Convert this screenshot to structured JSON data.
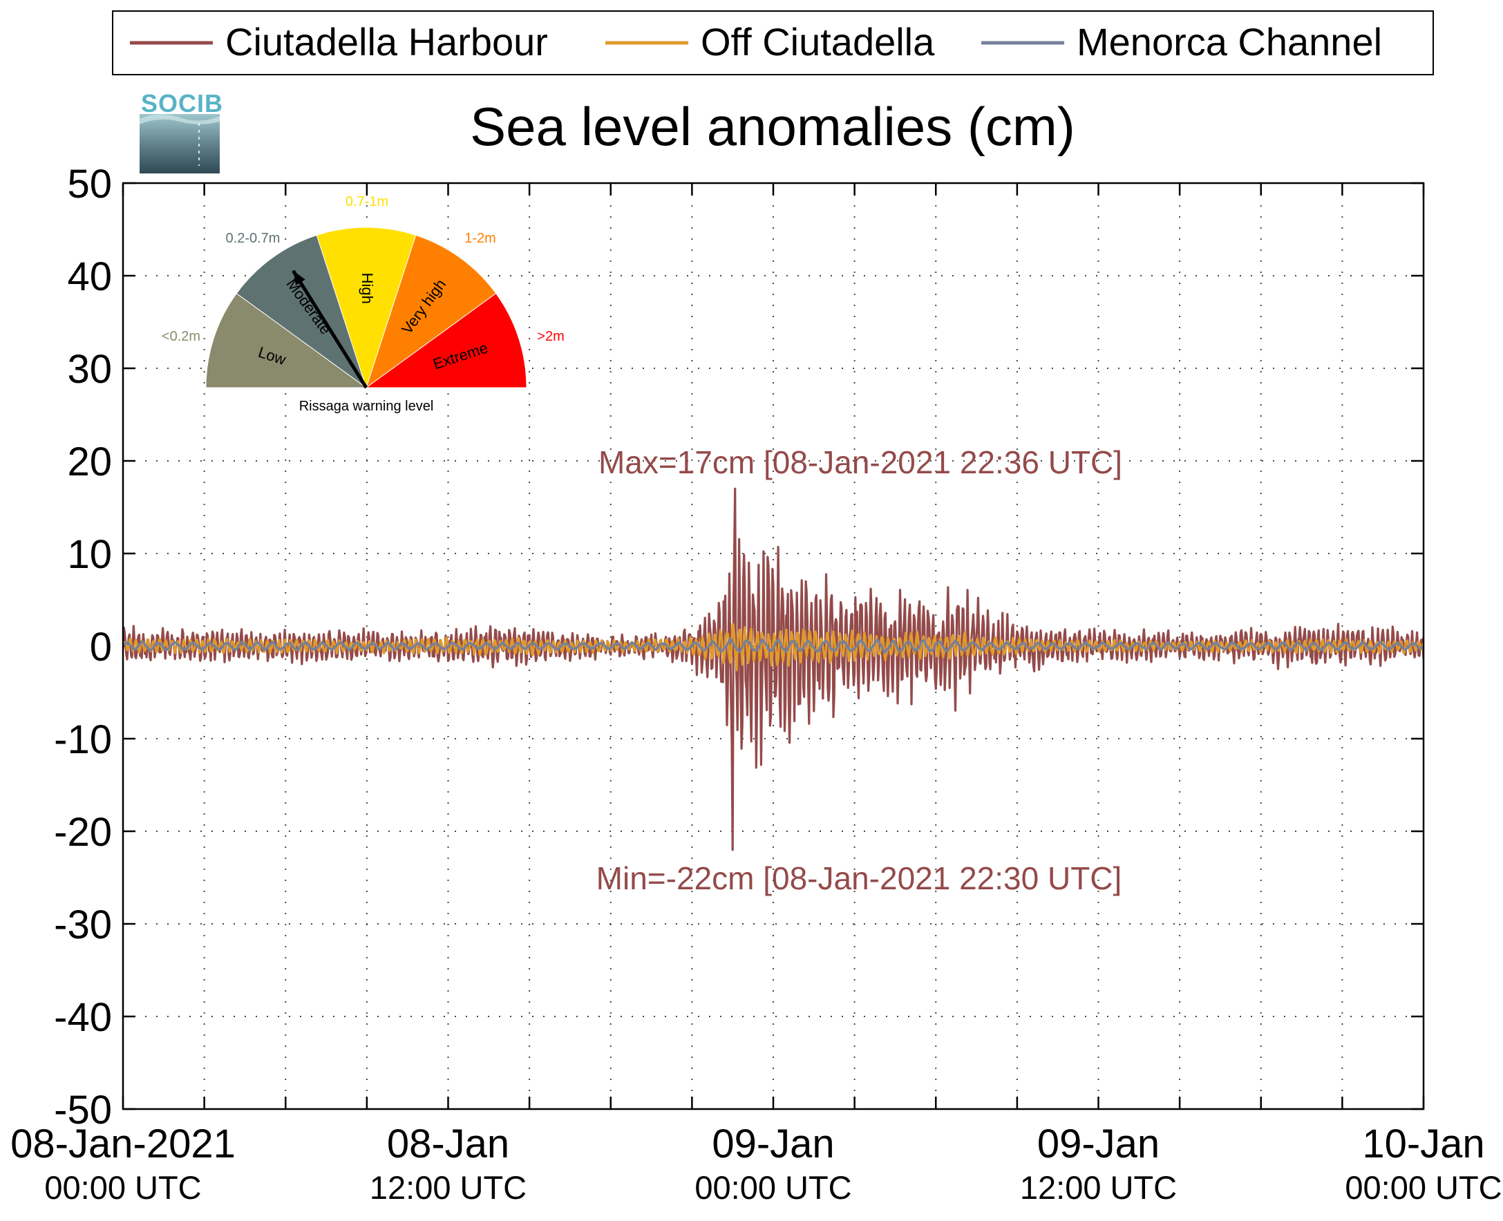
{
  "logo": {
    "text": "SOCIB"
  },
  "chart_data": {
    "type": "line",
    "title": "Sea level anomalies (cm)",
    "ylim": [
      -50,
      50
    ],
    "yticks": [
      50,
      40,
      30,
      20,
      10,
      0,
      -10,
      -20,
      -30,
      -40,
      -50
    ],
    "xlim_hours": [
      0,
      48
    ],
    "xticks": [
      {
        "hour": 0,
        "line1": "08-Jan-2021",
        "line2": "00:00 UTC"
      },
      {
        "hour": 12,
        "line1": "08-Jan",
        "line2": "12:00 UTC"
      },
      {
        "hour": 24,
        "line1": "09-Jan",
        "line2": "00:00 UTC"
      },
      {
        "hour": 36,
        "line1": "09-Jan",
        "line2": "12:00 UTC"
      },
      {
        "hour": 48,
        "line1": "10-Jan",
        "line2": "00:00 UTC"
      }
    ],
    "grid": true,
    "legend": "top",
    "series": [
      {
        "name": "Ciutadella Harbour",
        "color": "#944a4a"
      },
      {
        "name": "Off Ciutadella",
        "color": "#e09a2c"
      },
      {
        "name": "Menorca Channel",
        "color": "#76819a"
      }
    ],
    "envelope": {
      "hours": [
        0,
        6,
        10,
        12,
        14,
        16,
        18,
        20,
        21,
        22,
        22.5,
        23,
        24,
        25,
        26,
        28,
        30,
        31,
        32,
        34,
        36,
        40,
        44,
        48
      ],
      "harbour": [
        1.7,
        1.5,
        1.3,
        1.5,
        2.0,
        1.5,
        1.0,
        1.2,
        1.8,
        5.0,
        12.0,
        10.0,
        9.0,
        8.0,
        6.0,
        5.5,
        4.5,
        5.5,
        3.0,
        2.0,
        1.5,
        1.3,
        2.0,
        1.5
      ],
      "offshore": [
        0.8,
        0.8,
        0.7,
        0.9,
        1.0,
        0.8,
        0.7,
        0.8,
        1.0,
        2.0,
        3.0,
        2.5,
        2.3,
        2.0,
        1.8,
        1.6,
        1.5,
        1.5,
        1.0,
        0.8,
        0.7,
        0.6,
        0.8,
        0.7
      ],
      "channel": [
        0.5,
        0.5,
        0.4,
        0.4,
        0.4,
        0.4,
        0.4,
        0.4,
        0.5,
        0.6,
        0.8,
        0.8,
        0.8,
        0.7,
        0.7,
        0.7,
        0.7,
        0.6,
        0.5,
        0.4,
        0.4,
        0.4,
        0.5,
        0.4
      ]
    },
    "extremes": {
      "max": {
        "hour": 22.6,
        "value": 17
      },
      "min": {
        "hour": 22.5,
        "value": -22
      }
    },
    "annotations": {
      "max": "Max=17cm [08-Jan-2021 22:36 UTC]",
      "min": "Min=-22cm [08-Jan-2021 22:30 UTC]",
      "color": "#944a4a"
    },
    "gauge": {
      "title": "Rissaga warning level",
      "needle_level": "Moderate",
      "sectors": [
        {
          "label": "Low",
          "range": "<0.2m",
          "color": "#8a8a6c",
          "range_color": "#8a8a6c"
        },
        {
          "label": "Moderate",
          "range": "0.2-0.7m",
          "color": "#5f7272",
          "range_color": "#5f7272"
        },
        {
          "label": "High",
          "range": "0.7-1m",
          "color": "#ffe000",
          "range_color": "#ffe000"
        },
        {
          "label": "Very high",
          "range": "1-2m",
          "color": "#ff8000",
          "range_color": "#ff8000"
        },
        {
          "label": "Extreme",
          "range": ">2m",
          "color": "#ff0000",
          "range_color": "#ff0000"
        }
      ]
    }
  }
}
